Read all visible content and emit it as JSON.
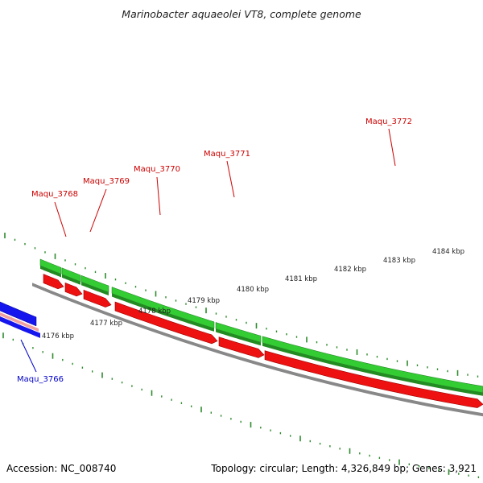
{
  "title": "Marinobacter aquaeolei VT8, complete genome",
  "footer": {
    "accession": "Accession: NC_008740",
    "summary": "Topology: circular; Length: 4,326,849 bp; Genes: 3,921"
  },
  "colors": {
    "cds_forward": "#33cc33",
    "cds_forward_dark": "#228b22",
    "cds_reverse": "#ee1111",
    "cds_reverse_alt": "#1515ee",
    "backbone": "#888888",
    "tick": "#2e8b2e",
    "label_red": "#cc0000",
    "label_blue": "#0000cc",
    "rna_pink": "#f0a0a0"
  },
  "position_labels": [
    "4176 kbp",
    "4177 kbp",
    "4178 kbp",
    "4179 kbp",
    "4180 kbp",
    "4181 kbp",
    "4182 kbp",
    "4183 kbp",
    "4184 kbp"
  ],
  "genes": [
    {
      "name": "Maqu_3766",
      "label_color": "blue"
    },
    {
      "name": "Maqu_3768",
      "label_color": "red"
    },
    {
      "name": "Maqu_3769",
      "label_color": "red"
    },
    {
      "name": "Maqu_3770",
      "label_color": "red"
    },
    {
      "name": "Maqu_3771",
      "label_color": "red"
    },
    {
      "name": "Maqu_3772",
      "label_color": "red"
    }
  ]
}
